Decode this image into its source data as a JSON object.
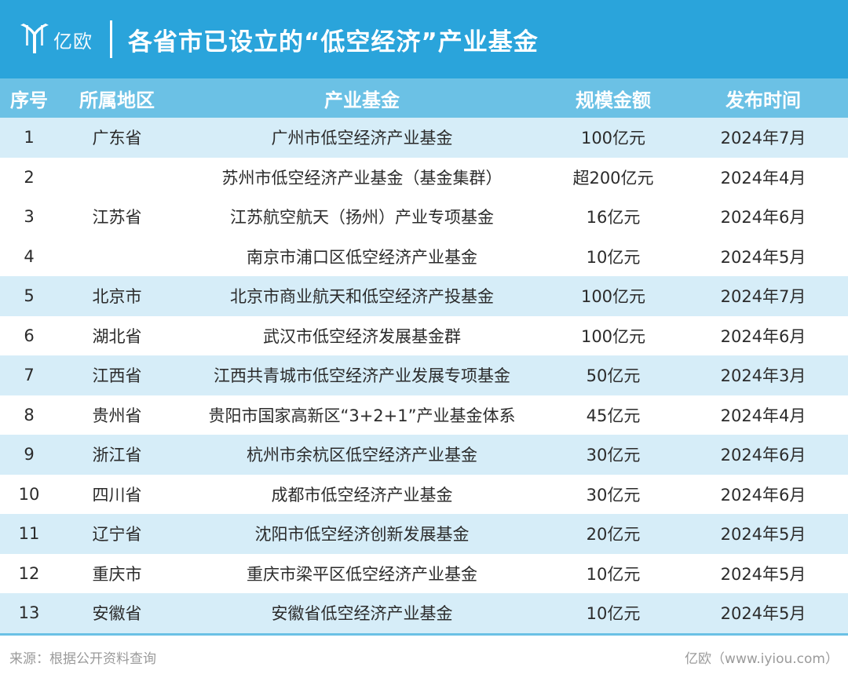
{
  "header": {
    "logo_text": "亿欧",
    "title": "各省市已设立的“低空经济”产业基金"
  },
  "colors": {
    "banner": "#2aa4db",
    "header_row": "#6bc1e5",
    "shaded_row": "#d6edf8"
  },
  "table": {
    "columns": [
      "序号",
      "所属地区",
      "产业基金",
      "规模金额",
      "发布时间"
    ],
    "rows": [
      {
        "no": "1",
        "region": "广东省",
        "fund": "广州市低空经济产业基金",
        "scale": "100亿元",
        "date": "2024年7月"
      },
      {
        "no": "2",
        "region": "",
        "fund": "苏州市低空经济产业基金（基金集群）",
        "scale": "超200亿元",
        "date": "2024年4月"
      },
      {
        "no": "3",
        "region": "江苏省",
        "fund": "江苏航空航天（扬州）产业专项基金",
        "scale": "16亿元",
        "date": "2024年6月"
      },
      {
        "no": "4",
        "region": "",
        "fund": "南京市浦口区低空经济产业基金",
        "scale": "10亿元",
        "date": "2024年5月"
      },
      {
        "no": "5",
        "region": "北京市",
        "fund": "北京市商业航天和低空经济产投基金",
        "scale": "100亿元",
        "date": "2024年7月"
      },
      {
        "no": "6",
        "region": "湖北省",
        "fund": "武汉市低空经济发展基金群",
        "scale": "100亿元",
        "date": "2024年6月"
      },
      {
        "no": "7",
        "region": "江西省",
        "fund": "江西共青城市低空经济产业发展专项基金",
        "scale": "50亿元",
        "date": "2024年3月"
      },
      {
        "no": "8",
        "region": "贵州省",
        "fund": "贵阳市国家高新区“3+2+1”产业基金体系",
        "scale": "45亿元",
        "date": "2024年4月"
      },
      {
        "no": "9",
        "region": "浙江省",
        "fund": "杭州市余杭区低空经济产业基金",
        "scale": "30亿元",
        "date": "2024年6月"
      },
      {
        "no": "10",
        "region": "四川省",
        "fund": "成都市低空经济产业基金",
        "scale": "30亿元",
        "date": "2024年6月"
      },
      {
        "no": "11",
        "region": "辽宁省",
        "fund": "沈阳市低空经济创新发展基金",
        "scale": "20亿元",
        "date": "2024年5月"
      },
      {
        "no": "12",
        "region": "重庆市",
        "fund": "重庆市梁平区低空经济产业基金",
        "scale": "10亿元",
        "date": "2024年5月"
      },
      {
        "no": "13",
        "region": "安徽省",
        "fund": "安徽省低空经济产业基金",
        "scale": "10亿元",
        "date": "2024年5月"
      }
    ]
  },
  "footer": {
    "source": "来源：根据公开资料查询",
    "credit": "亿欧（www.iyiou.com）"
  }
}
